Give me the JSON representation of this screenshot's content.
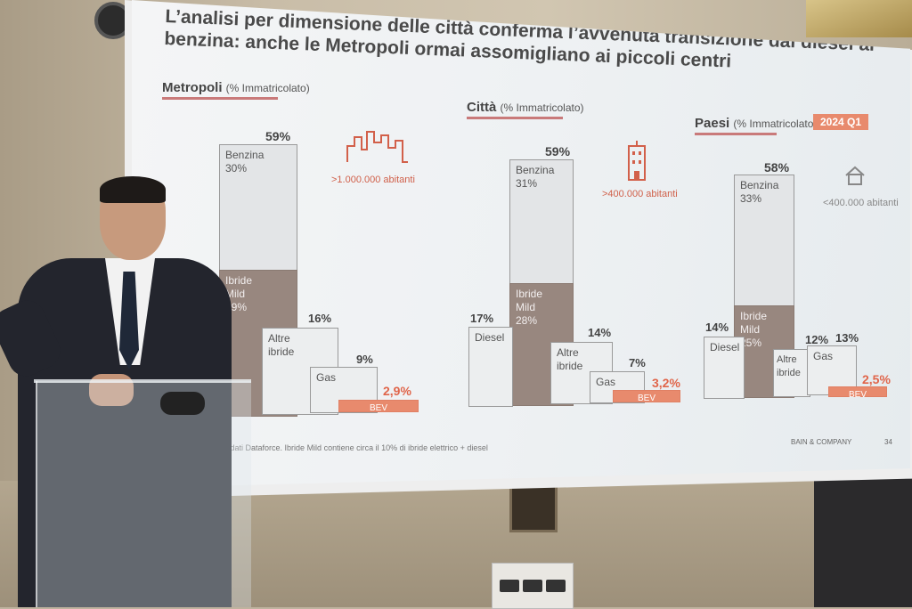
{
  "slide": {
    "title": "L’analisi per dimensione delle città conferma l’avvenuta transizione dal diesel al benzina: anche le Metropoli ormai assomigliano ai piccoli centri",
    "badge": "2024 Q1",
    "footnote": "Bain su dati Dataforce. Ibride Mild contiene circa il 10% di ibride elettrico + diesel",
    "brand": "BAIN & COMPANY",
    "page": "34"
  },
  "sections": {
    "metropoli": {
      "name": "Metropoli",
      "sub": "(% Immatricolato)",
      "habitants": ">1.000.000 abitanti",
      "total": "59%",
      "benzina_label": "Benzina",
      "benzina": "30%",
      "ibride_label": "Ibride Mild",
      "ibride": "29%",
      "altre_label": "Altre ibride",
      "altre": "16%",
      "gas_label": "Gas",
      "gas": "9%",
      "bev_label": "BEV",
      "bev": "2,9%"
    },
    "citta": {
      "name": "Città",
      "sub": "(% Immatricolato)",
      "habitants": ">400.000 abitanti",
      "total": "59%",
      "benzina_label": "Benzina",
      "benzina": "31%",
      "ibride_label": "Ibride Mild",
      "ibride": "28%",
      "diesel_label": "Diesel",
      "diesel": "17%",
      "altre_label": "Altre ibride",
      "altre": "14%",
      "gas_label": "Gas",
      "gas": "7%",
      "bev_label": "BEV",
      "bev": "3,2%"
    },
    "paesi": {
      "name": "Paesi",
      "sub": "(% Immatricolato)",
      "habitants": "<400.000 abitanti",
      "total": "58%",
      "benzina_label": "Benzina",
      "benzina": "33%",
      "ibride_label": "Ibride Mild",
      "ibride": "25%",
      "diesel_label": "Diesel",
      "diesel": "14%",
      "altre_label": "Altre ibride",
      "altre": "12%",
      "gas_label": "Gas",
      "gas": "13%",
      "bev_label": "BEV",
      "bev": "2,5%"
    }
  }
}
